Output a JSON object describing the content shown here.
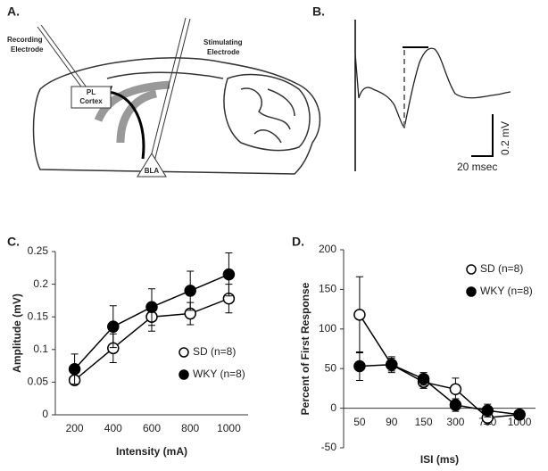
{
  "panel_labels": [
    "A.",
    "B.",
    "C.",
    "D."
  ],
  "diagram_a": {
    "recording_electrode": [
      "Recording",
      "Electrode"
    ],
    "stimulating_electrode": [
      "Stimulating",
      "Electrode"
    ],
    "region_pl": [
      "PL",
      "Cortex"
    ],
    "region_bla": "BLA"
  },
  "trace_b": {
    "time_scale": "20 msec",
    "voltage_scale": "0.2 mV"
  },
  "chart_data": [
    {
      "type": "line",
      "x_label": "Intensity (mA)",
      "y_label": "Amplitude (mV)",
      "categories": [
        "200",
        "400",
        "600",
        "800",
        "1000"
      ],
      "series": [
        {
          "name": "SD (n=8)",
          "color": "#ffffff",
          "values": [
            0.053,
            0.102,
            0.15,
            0.155,
            0.178
          ],
          "errors": [
            0.005,
            0.022,
            0.022,
            0.017,
            0.022
          ]
        },
        {
          "name": "WKY (n=8)",
          "color": "#000000",
          "values": [
            0.07,
            0.135,
            0.165,
            0.19,
            0.215
          ],
          "errors": [
            0.023,
            0.032,
            0.028,
            0.03,
            0.033
          ]
        }
      ],
      "ylim": [
        0,
        0.25
      ],
      "yticks": [
        0,
        0.05,
        0.1,
        0.15,
        0.2,
        0.25
      ],
      "legend": "lower right"
    },
    {
      "type": "line",
      "x_label": "ISI (ms)",
      "y_label": "Percent of First Response",
      "categories": [
        "50",
        "90",
        "150",
        "300",
        "700",
        "1000"
      ],
      "series": [
        {
          "name": "SD (n=8)",
          "color": "#ffffff",
          "values": [
            118,
            55,
            33,
            24,
            -12,
            -8
          ],
          "errors": [
            48,
            8,
            8,
            14,
            8,
            4
          ]
        },
        {
          "name": "WKY (n=8)",
          "color": "#000000",
          "values": [
            53,
            55,
            37,
            4,
            -3,
            -8
          ],
          "errors": [
            18,
            10,
            8,
            8,
            8,
            4
          ]
        }
      ],
      "ylim": [
        -50,
        200
      ],
      "yticks": [
        -50,
        0,
        50,
        100,
        150,
        200
      ],
      "legend": "upper right"
    }
  ]
}
